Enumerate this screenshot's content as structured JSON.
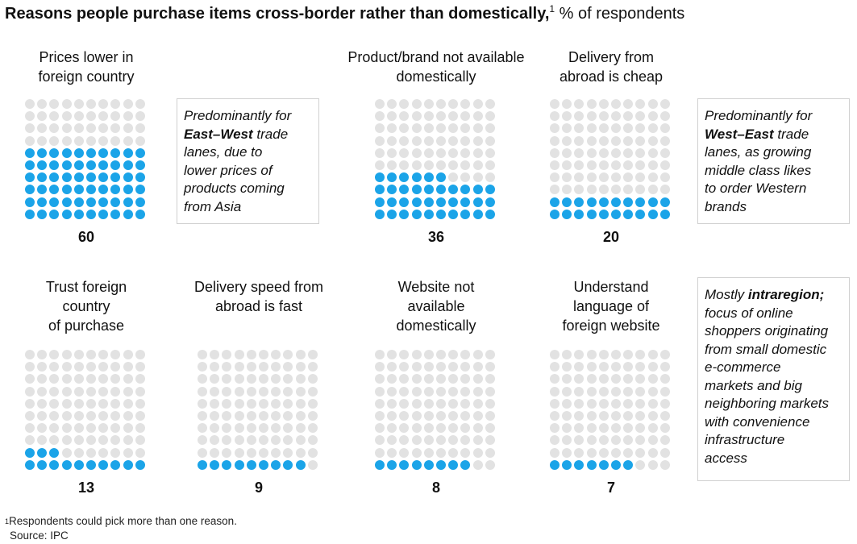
{
  "title": {
    "bold": "Reasons people purchase items cross-border rather than domestically,",
    "sup": "1",
    "unit": " % of respondents"
  },
  "chart_data": [
    {
      "type": "waffle",
      "label": "Prices lower in foreign country",
      "value": 60
    },
    {
      "type": "waffle",
      "label": "Product/brand not available domestically",
      "value": 36
    },
    {
      "type": "waffle",
      "label": "Delivery from abroad is cheap",
      "value": 20
    },
    {
      "type": "waffle",
      "label": "Trust foreign country of purchase",
      "value": 13
    },
    {
      "type": "waffle",
      "label": "Delivery speed from abroad is fast",
      "value": 9
    },
    {
      "type": "waffle",
      "label": "Website not available domestically",
      "value": 8
    },
    {
      "type": "waffle",
      "label": "Understand language of foreign website",
      "value": 7
    }
  ],
  "panels": [
    {
      "label_lines": [
        "Prices lower in",
        "foreign country"
      ],
      "value": "60"
    },
    {
      "label_lines": [
        "Product/brand not available",
        "domestically"
      ],
      "value": "36"
    },
    {
      "label_lines": [
        "Delivery from",
        "abroad is cheap"
      ],
      "value": "20"
    },
    {
      "label_lines": [
        "Trust foreign",
        "country",
        "of purchase"
      ],
      "value": "13"
    },
    {
      "label_lines": [
        "Delivery speed from",
        "abroad is fast"
      ],
      "value": "9"
    },
    {
      "label_lines": [
        "Website not",
        "available",
        "domestically"
      ],
      "value": "8"
    },
    {
      "label_lines": [
        "Understand",
        "language of",
        "foreign website"
      ],
      "value": "7"
    }
  ],
  "notes": [
    {
      "lines": [
        [
          {
            "t": "Predominantly for"
          }
        ],
        [
          {
            "t": "East–West",
            "b": true
          },
          {
            "t": " trade"
          }
        ],
        [
          {
            "t": "lanes, due to"
          }
        ],
        [
          {
            "t": "lower prices of"
          }
        ],
        [
          {
            "t": "products coming"
          }
        ],
        [
          {
            "t": "from Asia"
          }
        ]
      ]
    },
    {
      "lines": [
        [
          {
            "t": "Predominantly for"
          }
        ],
        [
          {
            "t": "West–East",
            "b": true
          },
          {
            "t": " trade"
          }
        ],
        [
          {
            "t": "lanes, as growing"
          }
        ],
        [
          {
            "t": "middle class likes"
          }
        ],
        [
          {
            "t": "to order Western"
          }
        ],
        [
          {
            "t": "brands"
          }
        ]
      ]
    },
    {
      "lines": [
        [
          {
            "t": "Mostly "
          },
          {
            "t": "intraregion;",
            "b": true
          }
        ],
        [
          {
            "t": "focus of online"
          }
        ],
        [
          {
            "t": "shoppers originating"
          }
        ],
        [
          {
            "t": "from small domestic"
          }
        ],
        [
          {
            "t": "e-commerce"
          }
        ],
        [
          {
            "t": "markets and big"
          }
        ],
        [
          {
            "t": "neighboring markets"
          }
        ],
        [
          {
            "t": "with convenience"
          }
        ],
        [
          {
            "t": "infrastructure"
          }
        ],
        [
          {
            "t": "access"
          }
        ]
      ]
    }
  ],
  "footnote": {
    "sup": "1",
    "text": "Respondents could pick more than one reason.",
    "source": "Source: IPC"
  },
  "colors": {
    "filled": "#1ba4e8",
    "empty": "#e2e2e2"
  }
}
